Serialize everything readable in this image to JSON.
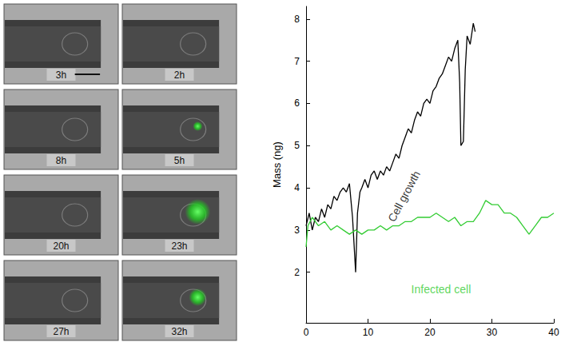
{
  "chart_data": {
    "type": "line",
    "y_label": "Mass (ng)",
    "xlim": [
      0,
      40
    ],
    "xticks": [
      0,
      10,
      20,
      30,
      40
    ],
    "ylim": [
      0.8,
      8.3
    ],
    "yticks": [
      2,
      3,
      4,
      5,
      6,
      7,
      8
    ],
    "grid": false,
    "series": [
      {
        "name": "Cell growth",
        "color": "#000000",
        "x": [
          0,
          0.5,
          1,
          1.5,
          2,
          2.5,
          3,
          3.5,
          4,
          4.5,
          5,
          5.5,
          6,
          6.5,
          7,
          7.5,
          8,
          8.3,
          8.7,
          9,
          9.5,
          10,
          10.5,
          11,
          11.5,
          12,
          12.5,
          13,
          13.5,
          14,
          14.5,
          15,
          15.5,
          16,
          16.5,
          17,
          17.5,
          18,
          18.5,
          19,
          19.5,
          20,
          20.5,
          21,
          21.5,
          22,
          22.5,
          23,
          23.5,
          24,
          24.5,
          24.8,
          25,
          25.4,
          25.7,
          26,
          26.5,
          27,
          27.3
        ],
        "values": [
          3.1,
          3.4,
          3.0,
          3.3,
          3.2,
          3.5,
          3.3,
          3.6,
          3.5,
          3.8,
          3.7,
          3.9,
          4.0,
          3.9,
          4.1,
          3.3,
          2.0,
          3.4,
          3.9,
          4.0,
          4.2,
          4.0,
          4.3,
          4.4,
          4.2,
          4.4,
          4.3,
          4.5,
          4.4,
          4.6,
          4.8,
          4.7,
          5.0,
          5.2,
          5.4,
          5.3,
          5.6,
          5.8,
          5.7,
          6.0,
          6.1,
          6.0,
          6.3,
          6.4,
          6.6,
          6.7,
          6.9,
          7.1,
          7.0,
          7.3,
          7.5,
          6.5,
          5.0,
          5.1,
          6.8,
          7.6,
          7.4,
          7.9,
          7.7
        ]
      },
      {
        "name": "Infected cell",
        "color": "#33cc33",
        "x": [
          0,
          0.3,
          1,
          2,
          3,
          4,
          5,
          6,
          7,
          8,
          9,
          10,
          11,
          12,
          13,
          14,
          15,
          16,
          17,
          18,
          19,
          20,
          21,
          22,
          23,
          24,
          25,
          26,
          27,
          28,
          29,
          30,
          31,
          32,
          33,
          34,
          35,
          36,
          37,
          38,
          39,
          40
        ],
        "values": [
          2.6,
          3.1,
          3.3,
          3.1,
          3.2,
          3.0,
          3.1,
          3.0,
          2.9,
          3.0,
          2.9,
          3.0,
          3.0,
          3.1,
          3.0,
          3.1,
          3.1,
          3.2,
          3.2,
          3.3,
          3.3,
          3.3,
          3.4,
          3.3,
          3.2,
          3.3,
          3.1,
          3.2,
          3.2,
          3.4,
          3.7,
          3.6,
          3.6,
          3.4,
          3.4,
          3.3,
          3.1,
          2.9,
          3.1,
          3.3,
          3.3,
          3.4
        ]
      }
    ],
    "annotations": [
      {
        "text": "Cell growth",
        "x": 15.8,
        "y": 3.8,
        "color": "#000000"
      },
      {
        "text": "Infected cell",
        "x": 21.8,
        "y": 1.6,
        "color": "#33cc33"
      }
    ],
    "panels": {
      "left": [
        "3h",
        "8h",
        "20h",
        "27h"
      ],
      "right": [
        "2h",
        "5h",
        "23h",
        "32h"
      ]
    }
  }
}
